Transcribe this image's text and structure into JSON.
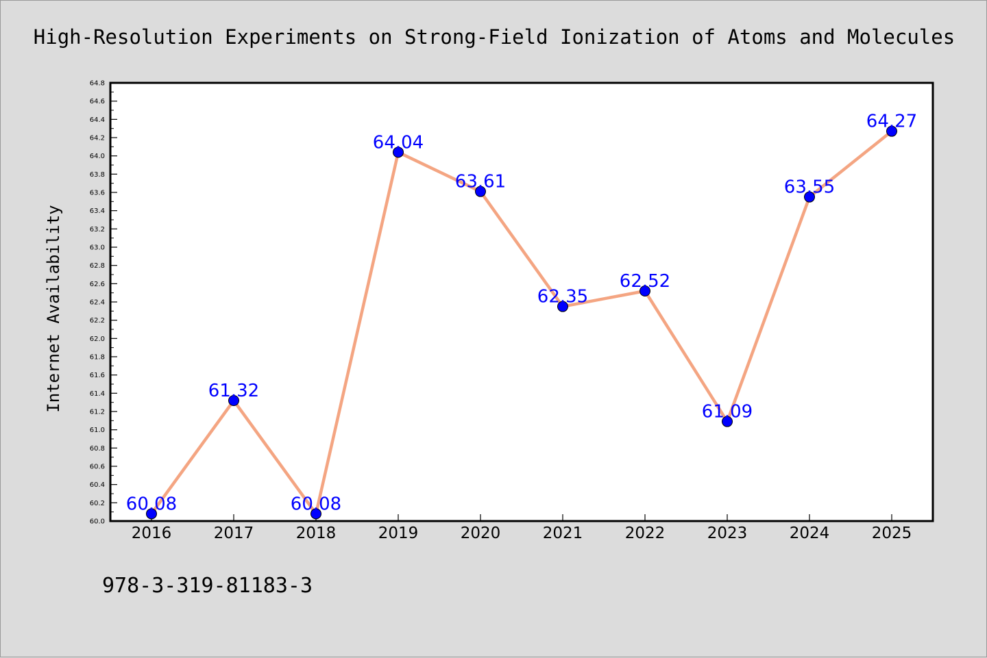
{
  "chart_data": {
    "type": "line",
    "title": "High-Resolution Experiments on Strong-Field Ionization of Atoms and Molecules",
    "xlabel": "",
    "ylabel": "Internet Availability",
    "categories": [
      "2016",
      "2017",
      "2018",
      "2019",
      "2020",
      "2021",
      "2022",
      "2023",
      "2024",
      "2025"
    ],
    "values": [
      60.08,
      61.32,
      60.08,
      64.04,
      63.61,
      62.35,
      62.52,
      61.09,
      63.55,
      64.27
    ],
    "data_labels": [
      "60.08",
      "61.32",
      "60.08",
      "64.04",
      "63.61",
      "62.35",
      "62.52",
      "61.09",
      "63.55",
      "64.27"
    ],
    "ylim": [
      60.0,
      64.8
    ],
    "yticks": [
      "60.0",
      "60.2",
      "60.4",
      "60.6",
      "60.8",
      "61.0",
      "61.2",
      "61.4",
      "61.6",
      "61.8",
      "62.0",
      "62.2",
      "62.4",
      "62.6",
      "62.8",
      "63.0",
      "63.2",
      "63.4",
      "63.6",
      "63.8",
      "64.0",
      "64.2",
      "64.4",
      "64.6",
      "64.8"
    ],
    "grid": false,
    "line_color": "#f4a582",
    "marker_color": "#0000ff",
    "label_color": "#0000ff"
  },
  "footer": {
    "text": "978-3-319-81183-3"
  },
  "colors": {
    "background": "#dcdcdc",
    "plot_area": "#ffffff",
    "axis": "#000000"
  }
}
